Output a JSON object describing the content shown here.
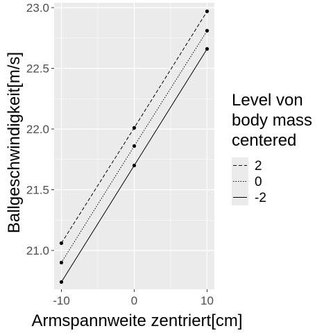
{
  "chart_data": {
    "type": "line",
    "xlabel": "Armspannweite zentriert[cm]",
    "ylabel": "Ballgeschwindigkeit[m/s]",
    "x_ticks": [
      "-10",
      "0",
      "10"
    ],
    "y_ticks": [
      "21.0",
      "21.5",
      "22.0",
      "22.5",
      "23.0"
    ],
    "xlim": [
      -11,
      11
    ],
    "ylim": [
      20.68,
      23.04
    ],
    "legend": {
      "title_lines": [
        "Level von",
        "body mass",
        "centered"
      ],
      "position": "right"
    },
    "series": [
      {
        "name": "2",
        "linestyle": "dashed",
        "x": [
          -10,
          0,
          10
        ],
        "y": [
          21.06,
          22.01,
          22.97
        ]
      },
      {
        "name": "0",
        "linestyle": "dotted",
        "x": [
          -10,
          0,
          10
        ],
        "y": [
          20.9,
          21.86,
          22.81
        ]
      },
      {
        "name": "-2",
        "linestyle": "solid",
        "x": [
          -10,
          0,
          10
        ],
        "y": [
          20.74,
          21.7,
          22.66
        ]
      }
    ],
    "grid": true,
    "panel_color": "#ebebeb",
    "line_color": "#000000",
    "point_color": "#000000"
  }
}
